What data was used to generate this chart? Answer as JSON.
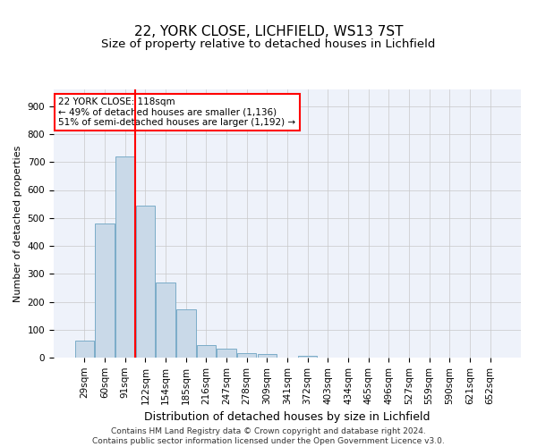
{
  "title1": "22, YORK CLOSE, LICHFIELD, WS13 7ST",
  "title2": "Size of property relative to detached houses in Lichfield",
  "xlabel": "Distribution of detached houses by size in Lichfield",
  "ylabel": "Number of detached properties",
  "categories": [
    "29sqm",
    "60sqm",
    "91sqm",
    "122sqm",
    "154sqm",
    "185sqm",
    "216sqm",
    "247sqm",
    "278sqm",
    "309sqm",
    "341sqm",
    "372sqm",
    "403sqm",
    "434sqm",
    "465sqm",
    "496sqm",
    "527sqm",
    "559sqm",
    "590sqm",
    "621sqm",
    "652sqm"
  ],
  "values": [
    60,
    480,
    720,
    545,
    270,
    172,
    45,
    32,
    17,
    14,
    0,
    8,
    0,
    0,
    0,
    0,
    0,
    0,
    0,
    0,
    0
  ],
  "bar_color": "#c9d9e8",
  "bar_edge_color": "#7aacc8",
  "vline_color": "red",
  "vline_pos": 2.5,
  "annotation_text": "22 YORK CLOSE: 118sqm\n← 49% of detached houses are smaller (1,136)\n51% of semi-detached houses are larger (1,192) →",
  "annotation_box_color": "white",
  "annotation_box_edge": "red",
  "ylim": [
    0,
    960
  ],
  "yticks": [
    0,
    100,
    200,
    300,
    400,
    500,
    600,
    700,
    800,
    900
  ],
  "footnote": "Contains HM Land Registry data © Crown copyright and database right 2024.\nContains public sector information licensed under the Open Government Licence v3.0.",
  "bg_color": "#eef2fa",
  "grid_color": "#c8c8c8",
  "title1_fontsize": 11,
  "title2_fontsize": 9.5,
  "xlabel_fontsize": 9,
  "ylabel_fontsize": 8,
  "tick_fontsize": 7.5,
  "annot_fontsize": 7.5,
  "footnote_fontsize": 6.5
}
